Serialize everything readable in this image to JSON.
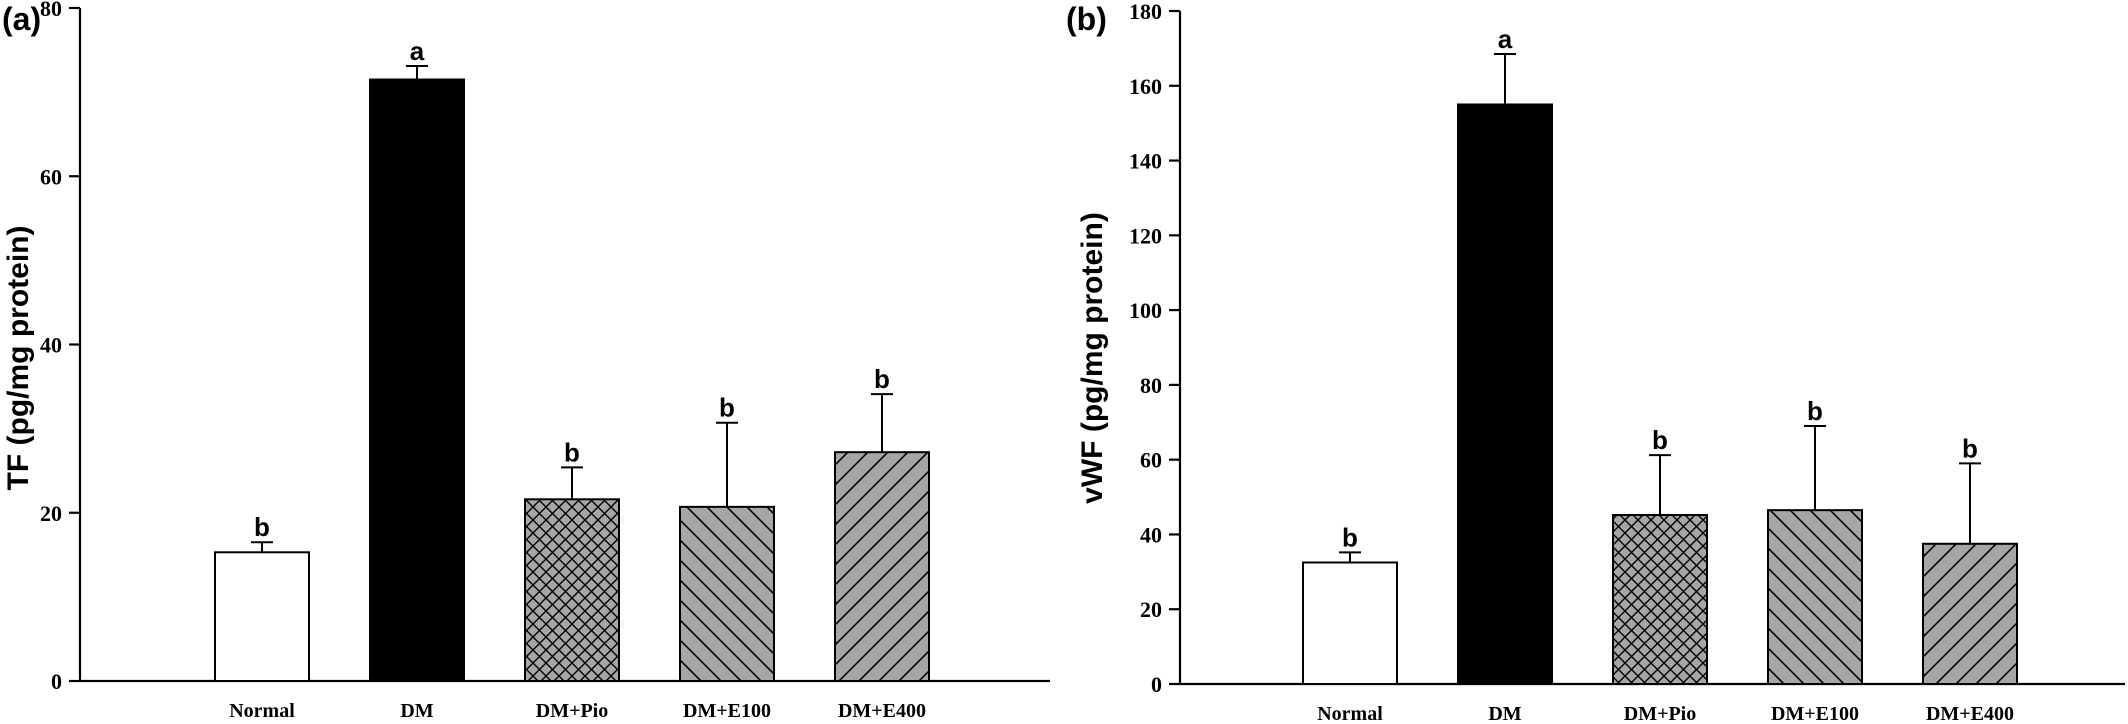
{
  "chart_data": [
    {
      "type": "bar",
      "panel_label": "(a)",
      "ylabel": "TF (pg/mg protein)",
      "xlabel": "",
      "ylim": [
        0,
        80
      ],
      "yticks": [
        0,
        20,
        40,
        60,
        80
      ],
      "categories": [
        "Normal",
        "DM",
        "DM+Pio",
        "DM+E100",
        "DM+E400"
      ],
      "values": [
        15.3,
        71.5,
        21.6,
        20.7,
        27.2
      ],
      "error_upper": [
        1.2,
        1.6,
        3.8,
        10.0,
        6.9
      ],
      "significance": [
        "b",
        "a",
        "b",
        "b",
        "b"
      ],
      "fills": [
        "white",
        "black",
        "crosshatch",
        "diagonal-down",
        "diagonal-up"
      ],
      "grid": false
    },
    {
      "type": "bar",
      "panel_label": "(b)",
      "ylabel": "vWF (pg/mg protein)",
      "xlabel": "",
      "ylim": [
        0,
        180
      ],
      "yticks": [
        0,
        20,
        40,
        60,
        80,
        100,
        120,
        140,
        160,
        180
      ],
      "categories": [
        "Normal",
        "DM",
        "DM+Pio",
        "DM+E100",
        "DM+E400"
      ],
      "values": [
        32.5,
        155,
        45.2,
        46.5,
        37.5
      ],
      "error_upper": [
        2.7,
        13.5,
        16.0,
        22.5,
        21.5
      ],
      "significance": [
        "b",
        "a",
        "b",
        "b",
        "b"
      ],
      "fills": [
        "white",
        "black",
        "crosshatch",
        "diagonal-down",
        "diagonal-up"
      ],
      "grid": false
    }
  ],
  "colors": {
    "axis": "#000000",
    "bar_outline": "#000000",
    "white_fill": "#ffffff",
    "black_fill": "#000000",
    "gray_fill": "#a6a6a6",
    "hatch_line": "#000000"
  }
}
